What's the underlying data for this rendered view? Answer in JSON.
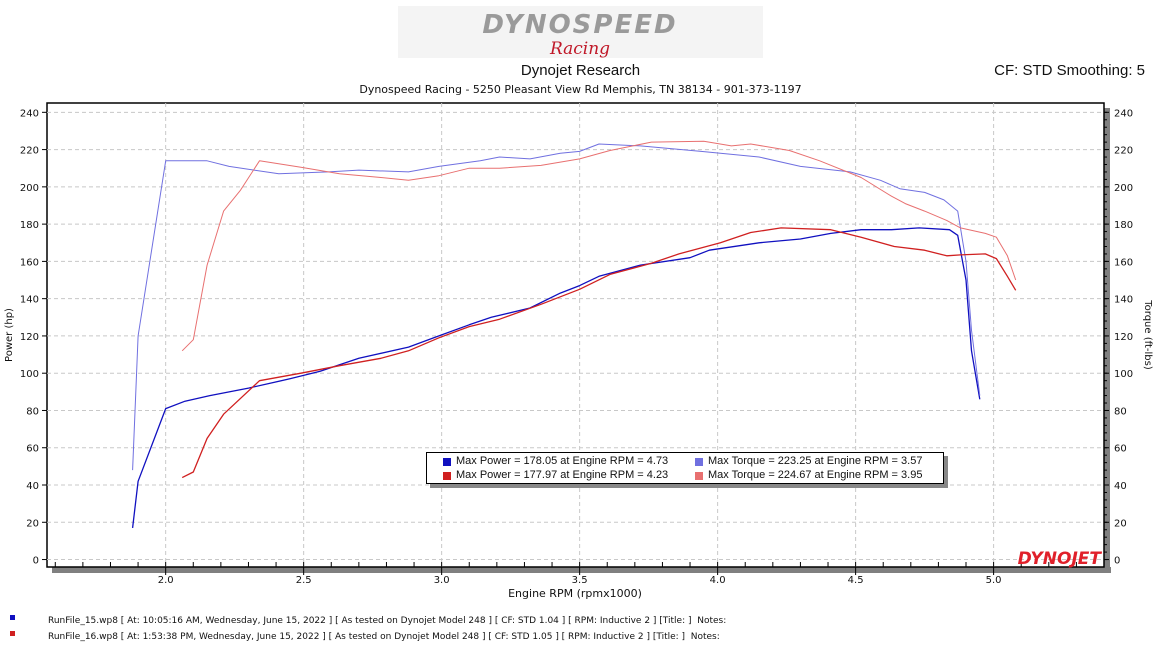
{
  "header": {
    "logo_text": "DYNOSPEED",
    "logo_script": "Racing",
    "title": "Dynojet Research",
    "subtitle": "Dynospeed Racing - 5250 Pleasant View Rd Memphis, TN 38134 - 901-373-1197",
    "cf_label": "CF: STD Smoothing: 5"
  },
  "watermark": "DYNOJET",
  "legend": [
    {
      "label": "Max Power = 178.05 at Engine RPM = 4.73",
      "color": "#1010c0"
    },
    {
      "label": "Max Torque = 223.25 at Engine RPM = 3.57",
      "color": "#7070e0"
    },
    {
      "label": "Max Power = 177.97 at Engine RPM = 4.23",
      "color": "#d02020"
    },
    {
      "label": "Max Torque = 224.67 at Engine RPM = 3.95",
      "color": "#e87070"
    }
  ],
  "notes": [
    {
      "text": "RunFile_15.wp8 [ At: 10:05:16 AM, Wednesday, June 15, 2022 ] [ As tested on Dynojet Model 248 ] [ CF: STD 1.04 ] [ RPM: Inductive 2 ] [Title: ]  Notes:",
      "color": "#1010c0"
    },
    {
      "text": "RunFile_16.wp8 [ At: 1:53:38 PM, Wednesday, June 15, 2022 ] [ As tested on Dynojet Model 248 ] [ CF: STD 1.05 ] [ RPM: Inductive 2 ] [Title: ]  Notes:",
      "color": "#d02020"
    }
  ],
  "chart_data": {
    "type": "line",
    "title": "Dynojet Research",
    "xlabel": "Engine RPM (rpmx1000)",
    "ylabel": "Power (hp)",
    "y2label": "Torque (ft-lbs)",
    "xlim": [
      1.57,
      5.4
    ],
    "ylim": [
      -4,
      245
    ],
    "xticks": [
      "2.0",
      "2.5",
      "3.0",
      "3.5",
      "4.0",
      "4.5",
      "5.0"
    ],
    "yticks": [
      "0",
      "20",
      "40",
      "60",
      "80",
      "100",
      "120",
      "140",
      "160",
      "180",
      "200",
      "220",
      "240"
    ],
    "grid": true,
    "series": [
      {
        "name": "RunFile_15 Power",
        "color": "#1010c0",
        "width": 1.3,
        "x": [
          1.88,
          1.9,
          2.0,
          2.07,
          2.16,
          2.3,
          2.45,
          2.56,
          2.7,
          2.88,
          2.99,
          3.1,
          3.18,
          3.32,
          3.43,
          3.5,
          3.57,
          3.72,
          3.9,
          3.97,
          4.15,
          4.3,
          4.41,
          4.52,
          4.63,
          4.73,
          4.84,
          4.87,
          4.9,
          4.92,
          4.95
        ],
        "y": [
          17,
          42,
          81,
          85,
          88,
          92,
          97,
          101,
          108,
          114,
          120,
          126,
          130,
          135,
          143,
          147,
          152,
          158,
          162,
          166,
          170,
          172,
          175,
          177,
          177,
          178,
          177,
          174,
          150,
          112,
          86
        ]
      },
      {
        "name": "RunFile_15 Torque",
        "color": "#7070e0",
        "width": 1,
        "x": [
          1.88,
          1.9,
          2.0,
          2.15,
          2.23,
          2.41,
          2.59,
          2.7,
          2.88,
          2.99,
          3.14,
          3.21,
          3.32,
          3.43,
          3.5,
          3.57,
          3.72,
          3.94,
          4.01,
          4.15,
          4.3,
          4.48,
          4.59,
          4.66,
          4.75,
          4.82,
          4.87,
          4.9,
          4.92,
          4.95
        ],
        "y": [
          48,
          120,
          214,
          214,
          211,
          207,
          208,
          209,
          208,
          211,
          214,
          216,
          215,
          218,
          219,
          223,
          222,
          219,
          218,
          216,
          211,
          208,
          203.5,
          199,
          197,
          193,
          187,
          160,
          123,
          88
        ]
      },
      {
        "name": "RunFile_16 Power",
        "color": "#d02020",
        "width": 1.3,
        "x": [
          2.06,
          2.1,
          2.15,
          2.21,
          2.34,
          2.49,
          2.63,
          2.78,
          2.88,
          2.99,
          3.1,
          3.21,
          3.36,
          3.5,
          3.61,
          3.76,
          3.86,
          4.01,
          4.12,
          4.23,
          4.41,
          4.52,
          4.64,
          4.75,
          4.83,
          4.88,
          4.97,
          5.01,
          5.05,
          5.08
        ],
        "y": [
          44,
          47,
          65,
          78,
          96,
          100,
          104,
          108,
          112,
          119,
          125,
          129,
          137,
          145,
          153,
          159,
          164,
          170,
          175.5,
          178,
          177,
          173,
          168,
          166,
          163,
          163.5,
          164,
          161.5,
          152,
          144.5
        ]
      },
      {
        "name": "RunFile_16 Torque",
        "color": "#e87070",
        "width": 1,
        "x": [
          2.06,
          2.1,
          2.15,
          2.21,
          2.27,
          2.34,
          2.49,
          2.63,
          2.78,
          2.88,
          2.99,
          3.1,
          3.21,
          3.36,
          3.5,
          3.61,
          3.76,
          3.95,
          4.05,
          4.12,
          4.26,
          4.37,
          4.52,
          4.63,
          4.68,
          4.75,
          4.83,
          4.88,
          4.97,
          5.01,
          5.05,
          5.08
        ],
        "y": [
          112,
          118,
          158,
          187,
          198,
          214,
          210.5,
          207,
          205,
          203.5,
          206,
          210,
          210,
          211.5,
          215,
          219.5,
          224,
          224.5,
          222,
          223,
          219.5,
          214,
          205,
          195,
          191,
          187,
          182,
          178,
          175,
          173,
          163,
          150
        ]
      }
    ]
  }
}
